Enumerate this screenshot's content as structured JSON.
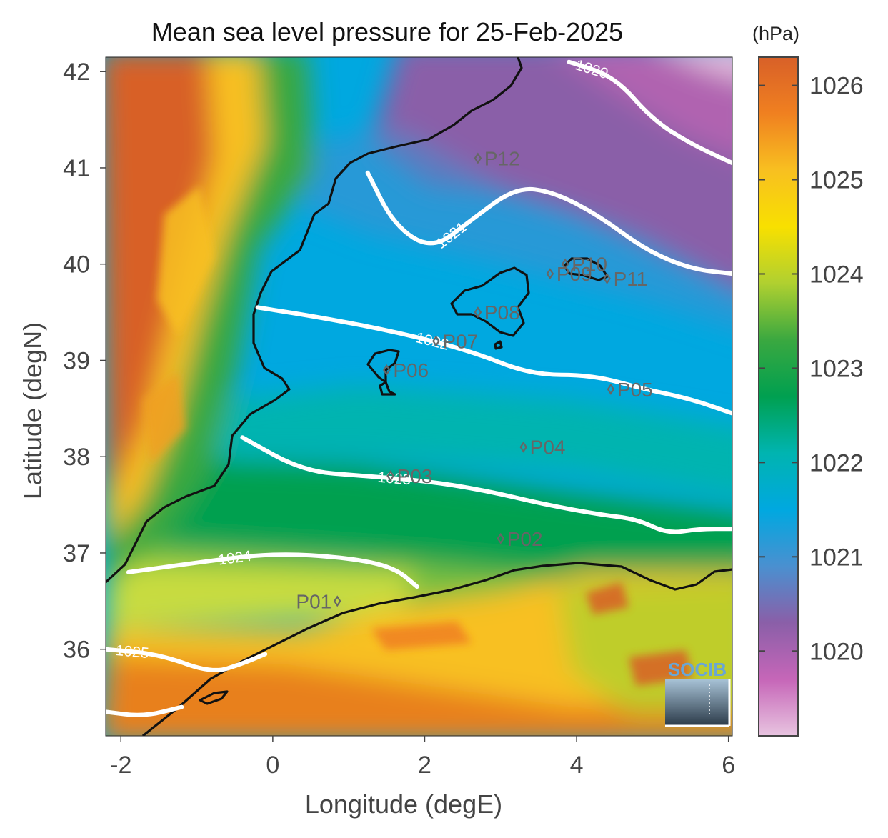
{
  "title": "Mean sea level pressure for 25-Feb-2025",
  "colorbar_unit": "(hPa)",
  "logo": "SOCIB",
  "chart_data": {
    "type": "heatmap",
    "title": "Mean sea level pressure for 25-Feb-2025",
    "xlabel": "Longitude (degE)",
    "ylabel": "Latitude (degN)",
    "xlim": [
      -2.2,
      6.05
    ],
    "ylim": [
      35.1,
      42.15
    ],
    "x_ticks": [
      "-2",
      "0",
      "2",
      "4",
      "6"
    ],
    "y_ticks": [
      "36",
      "37",
      "38",
      "39",
      "40",
      "41",
      "42"
    ],
    "colorbar": {
      "unit": "(hPa)",
      "range": [
        1019.1,
        1026.3
      ],
      "ticks": [
        "1020",
        "1021",
        "1022",
        "1023",
        "1024",
        "1025",
        "1026"
      ],
      "colormap": [
        "#e8c4e0",
        "#c666b8",
        "#8a5fa8",
        "#4a90d0",
        "#00a8e0",
        "#00b4b0",
        "#00a050",
        "#3aa840",
        "#b0d030",
        "#f8e000",
        "#f8c020",
        "#f08020",
        "#d86028"
      ]
    },
    "contours": [
      {
        "label": "1020",
        "points": [
          [
            3.9,
            42.1
          ],
          [
            4.5,
            41.95
          ],
          [
            5.0,
            41.5
          ],
          [
            5.5,
            41.25
          ],
          [
            6.05,
            41.05
          ]
        ]
      },
      {
        "label": "1021",
        "points": [
          [
            1.25,
            40.95
          ],
          [
            1.6,
            40.4
          ],
          [
            2.1,
            40.15
          ],
          [
            2.6,
            40.45
          ],
          [
            3.2,
            40.8
          ],
          [
            3.7,
            40.75
          ],
          [
            4.3,
            40.5
          ],
          [
            4.9,
            40.15
          ],
          [
            5.5,
            39.95
          ],
          [
            6.05,
            39.9
          ]
        ]
      },
      {
        "label": "1022",
        "points": [
          [
            -0.2,
            39.55
          ],
          [
            0.6,
            39.45
          ],
          [
            1.6,
            39.3
          ],
          [
            2.6,
            39.1
          ],
          [
            3.4,
            38.85
          ],
          [
            4.2,
            38.85
          ],
          [
            4.9,
            38.7
          ],
          [
            5.5,
            38.6
          ],
          [
            6.05,
            38.45
          ]
        ]
      },
      {
        "label": "1023",
        "points": [
          [
            -0.4,
            38.2
          ],
          [
            0.4,
            37.85
          ],
          [
            1.2,
            37.8
          ],
          [
            2.0,
            37.75
          ],
          [
            2.8,
            37.65
          ],
          [
            3.6,
            37.5
          ],
          [
            4.3,
            37.4
          ],
          [
            4.8,
            37.35
          ],
          [
            5.2,
            37.2
          ],
          [
            5.6,
            37.25
          ],
          [
            6.05,
            37.25
          ]
        ]
      },
      {
        "label": "1024",
        "points": [
          [
            -1.9,
            36.8
          ],
          [
            -1.0,
            36.9
          ],
          [
            0.0,
            37.0
          ],
          [
            1.0,
            36.95
          ],
          [
            1.6,
            36.85
          ],
          [
            1.9,
            36.65
          ]
        ]
      },
      {
        "label": "1025",
        "points": [
          [
            -2.2,
            36.0
          ],
          [
            -1.5,
            35.95
          ],
          [
            -0.8,
            35.75
          ],
          [
            -0.4,
            35.85
          ],
          [
            -0.1,
            35.95
          ]
        ]
      },
      {
        "label": "",
        "points": [
          [
            -2.2,
            35.35
          ],
          [
            -1.7,
            35.3
          ],
          [
            -1.2,
            35.4
          ]
        ]
      }
    ],
    "stations": [
      {
        "name": "P01",
        "lon": 0.85,
        "lat": 36.5
      },
      {
        "name": "P02",
        "lon": 3.0,
        "lat": 37.15
      },
      {
        "name": "P03",
        "lon": 1.55,
        "lat": 37.8
      },
      {
        "name": "P04",
        "lon": 3.3,
        "lat": 38.1
      },
      {
        "name": "P05",
        "lon": 4.45,
        "lat": 38.7
      },
      {
        "name": "P06",
        "lon": 1.5,
        "lat": 38.9
      },
      {
        "name": "P07",
        "lon": 2.15,
        "lat": 39.2
      },
      {
        "name": "P08",
        "lon": 2.7,
        "lat": 39.5
      },
      {
        "name": "P09",
        "lon": 3.65,
        "lat": 39.9
      },
      {
        "name": "P10",
        "lon": 3.85,
        "lat": 40.0
      },
      {
        "name": "P11",
        "lon": 4.4,
        "lat": 39.85
      },
      {
        "name": "P12",
        "lon": 2.7,
        "lat": 41.1
      }
    ]
  }
}
